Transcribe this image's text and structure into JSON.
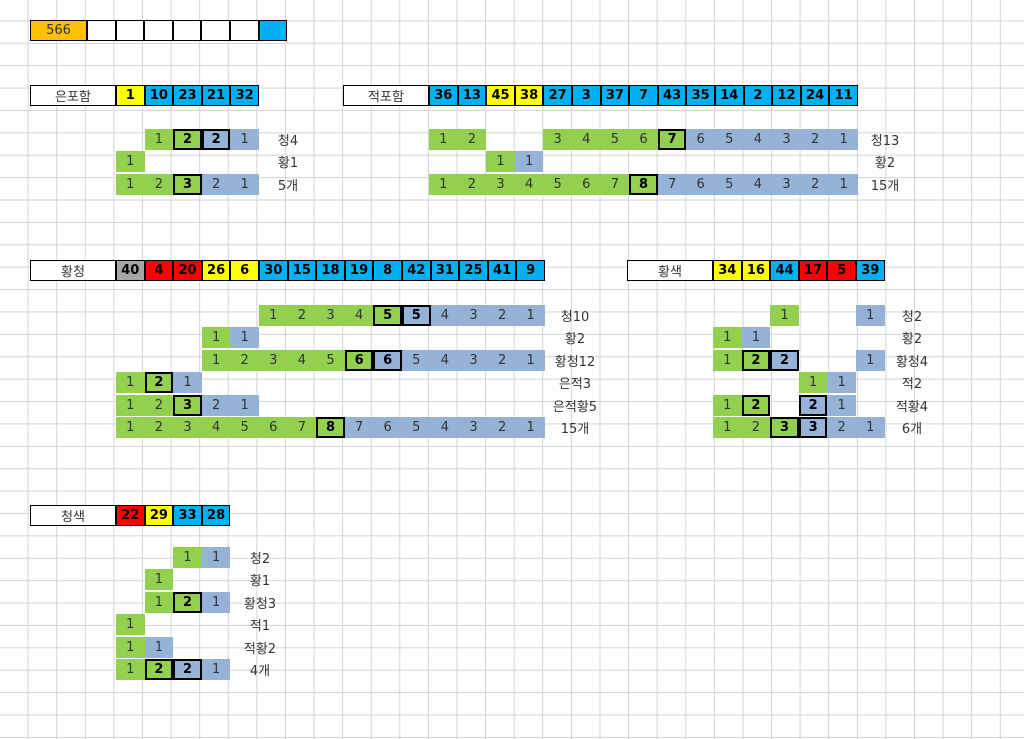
{
  "colors": {
    "orange": "#ffc000",
    "yellow": "#ffff00",
    "blue": "#00b0f0",
    "red": "#ff0000",
    "gray": "#a6a6a6",
    "green": "#92d050",
    "lightblue": "#95b3d7",
    "white": "#ffffff"
  },
  "top_row": {
    "count": "566",
    "cells": [
      {
        "text": "566",
        "color": "orange"
      },
      {
        "text": "",
        "color": "white"
      },
      {
        "text": "",
        "color": "white"
      },
      {
        "text": "",
        "color": "white"
      },
      {
        "text": "",
        "color": "white"
      },
      {
        "text": "",
        "color": "white"
      },
      {
        "text": "",
        "color": "white"
      },
      {
        "text": "",
        "color": "blue"
      }
    ]
  },
  "sections": {
    "eunpoham": {
      "title": "은포함",
      "numbers": [
        {
          "text": "1",
          "color": "yellow"
        },
        {
          "text": "10",
          "color": "blue"
        },
        {
          "text": "23",
          "color": "blue"
        },
        {
          "text": "21",
          "color": "blue"
        },
        {
          "text": "32",
          "color": "blue"
        }
      ],
      "rows": [
        {
          "label": "청4",
          "cells": [
            null,
            {
              "t": "1",
              "c": "green"
            },
            {
              "t": "2",
              "c": "green",
              "box": true
            },
            {
              "t": "2",
              "c": "lightblue",
              "box": true
            },
            {
              "t": "1",
              "c": "lightblue"
            }
          ]
        },
        {
          "label": "황1",
          "cells": [
            {
              "t": "1",
              "c": "green"
            },
            null,
            null,
            null,
            null
          ]
        },
        {
          "label": "5개",
          "cells": [
            {
              "t": "1",
              "c": "green"
            },
            {
              "t": "2",
              "c": "green"
            },
            {
              "t": "3",
              "c": "green",
              "box": true
            },
            {
              "t": "2",
              "c": "lightblue"
            },
            {
              "t": "1",
              "c": "lightblue"
            }
          ]
        }
      ]
    },
    "jeokpoham": {
      "title": "적포함",
      "numbers": [
        {
          "text": "36",
          "color": "blue"
        },
        {
          "text": "13",
          "color": "blue"
        },
        {
          "text": "45",
          "color": "yellow"
        },
        {
          "text": "38",
          "color": "yellow"
        },
        {
          "text": "27",
          "color": "blue"
        },
        {
          "text": "3",
          "color": "blue"
        },
        {
          "text": "37",
          "color": "blue"
        },
        {
          "text": "7",
          "color": "blue"
        },
        {
          "text": "43",
          "color": "blue"
        },
        {
          "text": "35",
          "color": "blue"
        },
        {
          "text": "14",
          "color": "blue"
        },
        {
          "text": "2",
          "color": "blue"
        },
        {
          "text": "12",
          "color": "blue"
        },
        {
          "text": "24",
          "color": "blue"
        },
        {
          "text": "11",
          "color": "blue"
        }
      ],
      "rows": [
        {
          "label": "청13",
          "cells": [
            {
              "t": "1",
              "c": "green"
            },
            {
              "t": "2",
              "c": "green"
            },
            null,
            null,
            {
              "t": "3",
              "c": "green"
            },
            {
              "t": "4",
              "c": "green"
            },
            {
              "t": "5",
              "c": "green"
            },
            {
              "t": "6",
              "c": "green"
            },
            {
              "t": "7",
              "c": "green",
              "box": true
            },
            {
              "t": "6",
              "c": "lightblue"
            },
            {
              "t": "5",
              "c": "lightblue"
            },
            {
              "t": "4",
              "c": "lightblue"
            },
            {
              "t": "3",
              "c": "lightblue"
            },
            {
              "t": "2",
              "c": "lightblue"
            },
            {
              "t": "1",
              "c": "lightblue"
            }
          ]
        },
        {
          "label": "황2",
          "cells": [
            null,
            null,
            {
              "t": "1",
              "c": "green"
            },
            {
              "t": "1",
              "c": "lightblue"
            },
            null,
            null,
            null,
            null,
            null,
            null,
            null,
            null,
            null,
            null,
            null
          ]
        },
        {
          "label": "15개",
          "cells": [
            {
              "t": "1",
              "c": "green"
            },
            {
              "t": "2",
              "c": "green"
            },
            {
              "t": "3",
              "c": "green"
            },
            {
              "t": "4",
              "c": "green"
            },
            {
              "t": "5",
              "c": "green"
            },
            {
              "t": "6",
              "c": "green"
            },
            {
              "t": "7",
              "c": "green"
            },
            {
              "t": "8",
              "c": "green",
              "box": true
            },
            {
              "t": "7",
              "c": "lightblue"
            },
            {
              "t": "6",
              "c": "lightblue"
            },
            {
              "t": "5",
              "c": "lightblue"
            },
            {
              "t": "4",
              "c": "lightblue"
            },
            {
              "t": "3",
              "c": "lightblue"
            },
            {
              "t": "2",
              "c": "lightblue"
            },
            {
              "t": "1",
              "c": "lightblue"
            }
          ]
        }
      ]
    },
    "hwangcheong": {
      "title": "황청",
      "numbers": [
        {
          "text": "40",
          "color": "gray"
        },
        {
          "text": "4",
          "color": "red"
        },
        {
          "text": "20",
          "color": "red"
        },
        {
          "text": "26",
          "color": "yellow"
        },
        {
          "text": "6",
          "color": "yellow"
        },
        {
          "text": "30",
          "color": "blue"
        },
        {
          "text": "15",
          "color": "blue"
        },
        {
          "text": "18",
          "color": "blue"
        },
        {
          "text": "19",
          "color": "blue"
        },
        {
          "text": "8",
          "color": "blue"
        },
        {
          "text": "42",
          "color": "blue"
        },
        {
          "text": "31",
          "color": "blue"
        },
        {
          "text": "25",
          "color": "blue"
        },
        {
          "text": "41",
          "color": "blue"
        },
        {
          "text": "9",
          "color": "blue"
        }
      ],
      "rows": [
        {
          "label": "청10",
          "cells": [
            null,
            null,
            null,
            null,
            null,
            {
              "t": "1",
              "c": "green"
            },
            {
              "t": "2",
              "c": "green"
            },
            {
              "t": "3",
              "c": "green"
            },
            {
              "t": "4",
              "c": "green"
            },
            {
              "t": "5",
              "c": "green",
              "box": true
            },
            {
              "t": "5",
              "c": "lightblue",
              "box": true
            },
            {
              "t": "4",
              "c": "lightblue"
            },
            {
              "t": "3",
              "c": "lightblue"
            },
            {
              "t": "2",
              "c": "lightblue"
            },
            {
              "t": "1",
              "c": "lightblue"
            }
          ]
        },
        {
          "label": "황2",
          "cells": [
            null,
            null,
            null,
            {
              "t": "1",
              "c": "green"
            },
            {
              "t": "1",
              "c": "lightblue"
            },
            null,
            null,
            null,
            null,
            null,
            null,
            null,
            null,
            null,
            null
          ]
        },
        {
          "label": "황청12",
          "cells": [
            null,
            null,
            null,
            {
              "t": "1",
              "c": "green"
            },
            {
              "t": "2",
              "c": "green"
            },
            {
              "t": "3",
              "c": "green"
            },
            {
              "t": "4",
              "c": "green"
            },
            {
              "t": "5",
              "c": "green"
            },
            {
              "t": "6",
              "c": "green",
              "box": true
            },
            {
              "t": "6",
              "c": "lightblue",
              "box": true
            },
            {
              "t": "5",
              "c": "lightblue"
            },
            {
              "t": "4",
              "c": "lightblue"
            },
            {
              "t": "3",
              "c": "lightblue"
            },
            {
              "t": "2",
              "c": "lightblue"
            },
            {
              "t": "1",
              "c": "lightblue"
            }
          ]
        },
        {
          "label": "은적3",
          "cells": [
            {
              "t": "1",
              "c": "green"
            },
            {
              "t": "2",
              "c": "green",
              "box": true
            },
            {
              "t": "1",
              "c": "lightblue"
            },
            null,
            null,
            null,
            null,
            null,
            null,
            null,
            null,
            null,
            null,
            null,
            null
          ]
        },
        {
          "label": "은적황5",
          "cells": [
            {
              "t": "1",
              "c": "green"
            },
            {
              "t": "2",
              "c": "green"
            },
            {
              "t": "3",
              "c": "green",
              "box": true
            },
            {
              "t": "2",
              "c": "lightblue"
            },
            {
              "t": "1",
              "c": "lightblue"
            },
            null,
            null,
            null,
            null,
            null,
            null,
            null,
            null,
            null,
            null
          ]
        },
        {
          "label": "15개",
          "cells": [
            {
              "t": "1",
              "c": "green"
            },
            {
              "t": "2",
              "c": "green"
            },
            {
              "t": "3",
              "c": "green"
            },
            {
              "t": "4",
              "c": "green"
            },
            {
              "t": "5",
              "c": "green"
            },
            {
              "t": "6",
              "c": "green"
            },
            {
              "t": "7",
              "c": "green"
            },
            {
              "t": "8",
              "c": "green",
              "box": true
            },
            {
              "t": "7",
              "c": "lightblue"
            },
            {
              "t": "6",
              "c": "lightblue"
            },
            {
              "t": "5",
              "c": "lightblue"
            },
            {
              "t": "4",
              "c": "lightblue"
            },
            {
              "t": "3",
              "c": "lightblue"
            },
            {
              "t": "2",
              "c": "lightblue"
            },
            {
              "t": "1",
              "c": "lightblue"
            }
          ]
        }
      ]
    },
    "hwangsaek": {
      "title": "황색",
      "numbers": [
        {
          "text": "34",
          "color": "yellow"
        },
        {
          "text": "16",
          "color": "yellow"
        },
        {
          "text": "44",
          "color": "blue"
        },
        {
          "text": "17",
          "color": "red"
        },
        {
          "text": "5",
          "color": "red"
        },
        {
          "text": "39",
          "color": "blue"
        }
      ],
      "rows": [
        {
          "label": "청2",
          "cells": [
            null,
            null,
            {
              "t": "1",
              "c": "green"
            },
            null,
            null,
            {
              "t": "1",
              "c": "lightblue"
            }
          ]
        },
        {
          "label": "황2",
          "cells": [
            {
              "t": "1",
              "c": "green"
            },
            {
              "t": "1",
              "c": "lightblue"
            },
            null,
            null,
            null,
            null
          ]
        },
        {
          "label": "황청4",
          "cells": [
            {
              "t": "1",
              "c": "green"
            },
            {
              "t": "2",
              "c": "green",
              "box": true
            },
            {
              "t": "2",
              "c": "lightblue",
              "box": true
            },
            null,
            null,
            {
              "t": "1",
              "c": "lightblue"
            }
          ]
        },
        {
          "label": "적2",
          "cells": [
            null,
            null,
            null,
            {
              "t": "1",
              "c": "green"
            },
            {
              "t": "1",
              "c": "lightblue"
            },
            null
          ]
        },
        {
          "label": "적황4",
          "cells": [
            {
              "t": "1",
              "c": "green"
            },
            {
              "t": "2",
              "c": "green",
              "box": true
            },
            null,
            {
              "t": "2",
              "c": "lightblue",
              "box": true
            },
            {
              "t": "1",
              "c": "lightblue"
            },
            null
          ]
        },
        {
          "label": "6개",
          "cells": [
            {
              "t": "1",
              "c": "green"
            },
            {
              "t": "2",
              "c": "green"
            },
            {
              "t": "3",
              "c": "green",
              "box": true
            },
            {
              "t": "3",
              "c": "lightblue",
              "box": true
            },
            {
              "t": "2",
              "c": "lightblue"
            },
            {
              "t": "1",
              "c": "lightblue"
            }
          ]
        }
      ]
    },
    "cheongsaek": {
      "title": "청색",
      "numbers": [
        {
          "text": "22",
          "color": "red"
        },
        {
          "text": "29",
          "color": "yellow"
        },
        {
          "text": "33",
          "color": "blue"
        },
        {
          "text": "28",
          "color": "blue"
        }
      ],
      "rows": [
        {
          "label": "청2",
          "cells": [
            null,
            null,
            {
              "t": "1",
              "c": "green"
            },
            {
              "t": "1",
              "c": "lightblue"
            }
          ]
        },
        {
          "label": "황1",
          "cells": [
            null,
            {
              "t": "1",
              "c": "green"
            },
            null,
            null
          ]
        },
        {
          "label": "황청3",
          "cells": [
            null,
            {
              "t": "1",
              "c": "green"
            },
            {
              "t": "2",
              "c": "green",
              "box": true
            },
            {
              "t": "1",
              "c": "lightblue"
            }
          ]
        },
        {
          "label": "적1",
          "cells": [
            {
              "t": "1",
              "c": "green"
            },
            null,
            null,
            null
          ]
        },
        {
          "label": "적황2",
          "cells": [
            {
              "t": "1",
              "c": "green"
            },
            {
              "t": "1",
              "c": "lightblue"
            },
            null,
            null
          ]
        },
        {
          "label": "4개",
          "cells": [
            {
              "t": "1",
              "c": "green"
            },
            {
              "t": "2",
              "c": "green",
              "box": true
            },
            {
              "t": "2",
              "c": "lightblue",
              "box": true
            },
            {
              "t": "1",
              "c": "lightblue"
            }
          ]
        }
      ]
    }
  }
}
